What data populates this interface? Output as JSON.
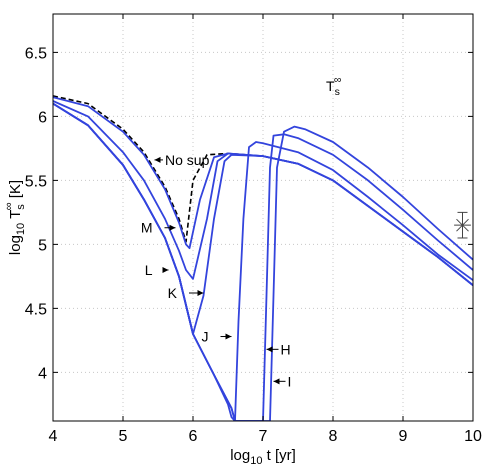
{
  "chart_data": {
    "type": "line",
    "xlabel": "log₁₀ t [yr]",
    "ylabel": "log₁₀ T_s^∞ [K]",
    "xlim": [
      4,
      10
    ],
    "ylim": [
      3.62,
      6.8
    ],
    "xticks": [
      "4",
      "5",
      "6",
      "7",
      "8",
      "9",
      "10"
    ],
    "yticks": [
      "4",
      "4.5",
      "5",
      "5.5",
      "6",
      "6.5"
    ],
    "grid": true,
    "corner_label": "T_s^∞",
    "series": [
      {
        "name": "No sup",
        "style": "dashed",
        "color": "#000000",
        "x": [
          4.0,
          4.5,
          5.0,
          5.3,
          5.6,
          5.8,
          5.9,
          6.0,
          6.2,
          6.5,
          7.0,
          7.5,
          8.0,
          8.5,
          9.0,
          9.5,
          10.0
        ],
        "y": [
          6.16,
          6.1,
          5.9,
          5.72,
          5.45,
          5.2,
          5.02,
          5.5,
          5.7,
          5.71,
          5.69,
          5.63,
          5.5,
          5.3,
          5.1,
          4.9,
          4.68
        ]
      },
      {
        "name": "M",
        "style": "solid",
        "color": "#3344dd",
        "x": [
          4.0,
          4.5,
          5.0,
          5.3,
          5.6,
          5.8,
          5.9,
          5.95,
          6.1,
          6.3,
          6.5,
          7.0,
          7.5,
          8.0,
          8.5,
          9.0,
          9.5,
          10.0
        ],
        "y": [
          6.15,
          6.08,
          5.88,
          5.7,
          5.43,
          5.17,
          5.0,
          4.97,
          5.35,
          5.68,
          5.71,
          5.69,
          5.63,
          5.5,
          5.3,
          5.1,
          4.9,
          4.68
        ]
      },
      {
        "name": "L",
        "style": "solid",
        "color": "#3344dd",
        "x": [
          4.0,
          4.5,
          5.0,
          5.3,
          5.6,
          5.8,
          5.9,
          6.0,
          6.2,
          6.35,
          6.5,
          7.0,
          7.5,
          8.0,
          8.5,
          9.0,
          9.5,
          10.0
        ],
        "y": [
          6.12,
          6.0,
          5.72,
          5.5,
          5.2,
          4.95,
          4.8,
          4.73,
          5.2,
          5.65,
          5.71,
          5.69,
          5.63,
          5.5,
          5.3,
          5.1,
          4.9,
          4.68
        ]
      },
      {
        "name": "K",
        "style": "solid",
        "color": "#3344dd",
        "x": [
          4.0,
          4.5,
          5.0,
          5.3,
          5.6,
          5.8,
          6.0,
          6.15,
          6.3,
          6.45,
          6.55,
          7.0,
          7.5,
          8.0,
          8.5,
          9.0,
          9.5,
          10.0
        ],
        "y": [
          6.1,
          5.93,
          5.62,
          5.35,
          5.05,
          4.75,
          4.3,
          4.6,
          5.2,
          5.65,
          5.7,
          5.69,
          5.63,
          5.5,
          5.3,
          5.1,
          4.9,
          4.68
        ]
      },
      {
        "name": "J",
        "style": "solid",
        "color": "#3344dd",
        "x": [
          4.0,
          4.5,
          5.0,
          5.3,
          5.6,
          5.8,
          6.0,
          6.3,
          6.5,
          6.55,
          6.6,
          6.65,
          6.72,
          6.8,
          6.9,
          7.0,
          7.5,
          8.0,
          8.5,
          9.0,
          9.5,
          10.0
        ],
        "y": [
          6.1,
          5.93,
          5.62,
          5.35,
          5.05,
          4.75,
          4.3,
          3.98,
          3.75,
          3.65,
          3.62,
          4.4,
          5.2,
          5.76,
          5.8,
          5.79,
          5.72,
          5.58,
          5.37,
          5.15,
          4.92,
          4.72
        ]
      },
      {
        "name": "H",
        "style": "solid",
        "color": "#3344dd",
        "x": [
          4.0,
          4.5,
          5.0,
          5.3,
          5.6,
          5.8,
          6.0,
          6.3,
          6.55,
          6.6,
          7.0,
          7.05,
          7.1,
          7.15,
          7.3,
          7.5,
          8.0,
          8.5,
          9.0,
          9.5,
          10.0
        ],
        "y": [
          6.1,
          5.93,
          5.62,
          5.35,
          5.05,
          4.75,
          4.3,
          3.98,
          3.72,
          3.62,
          3.62,
          4.6,
          5.6,
          5.85,
          5.86,
          5.83,
          5.7,
          5.5,
          5.27,
          5.03,
          4.8
        ]
      },
      {
        "name": "I",
        "style": "solid",
        "color": "#3344dd",
        "x": [
          4.0,
          4.5,
          5.0,
          5.3,
          5.6,
          5.8,
          6.0,
          6.3,
          6.55,
          6.6,
          7.1,
          7.15,
          7.2,
          7.3,
          7.45,
          7.6,
          8.0,
          8.5,
          9.0,
          9.5,
          10.0
        ],
        "y": [
          6.1,
          5.93,
          5.62,
          5.35,
          5.05,
          4.75,
          4.3,
          3.98,
          3.72,
          3.62,
          3.62,
          4.6,
          5.6,
          5.88,
          5.92,
          5.9,
          5.8,
          5.6,
          5.37,
          5.12,
          4.88
        ]
      }
    ],
    "annotations": [
      {
        "text": "No sup",
        "x": 5.6,
        "y": 5.66,
        "arrow_to_x": 5.45,
        "arrow_to_y": 5.66
      },
      {
        "text": "M",
        "x": 5.45,
        "y": 5.13,
        "arrow_to_x": 5.75,
        "arrow_to_y": 5.13
      },
      {
        "text": "L",
        "x": 5.45,
        "y": 4.8,
        "arrow_to_x": 5.65,
        "arrow_to_y": 4.8
      },
      {
        "text": "K",
        "x": 5.8,
        "y": 4.62,
        "arrow_to_x": 6.15,
        "arrow_to_y": 4.62
      },
      {
        "text": "J",
        "x": 6.25,
        "y": 4.28,
        "arrow_to_x": 6.55,
        "arrow_to_y": 4.28
      },
      {
        "text": "H",
        "x": 7.25,
        "y": 4.18,
        "arrow_to_x": 7.05,
        "arrow_to_y": 4.18
      },
      {
        "text": "I",
        "x": 7.35,
        "y": 3.93,
        "arrow_to_x": 7.15,
        "arrow_to_y": 3.93
      }
    ],
    "observation": {
      "x": 9.85,
      "y": 5.15,
      "yerr": 0.1,
      "xerr": 0.12
    }
  }
}
